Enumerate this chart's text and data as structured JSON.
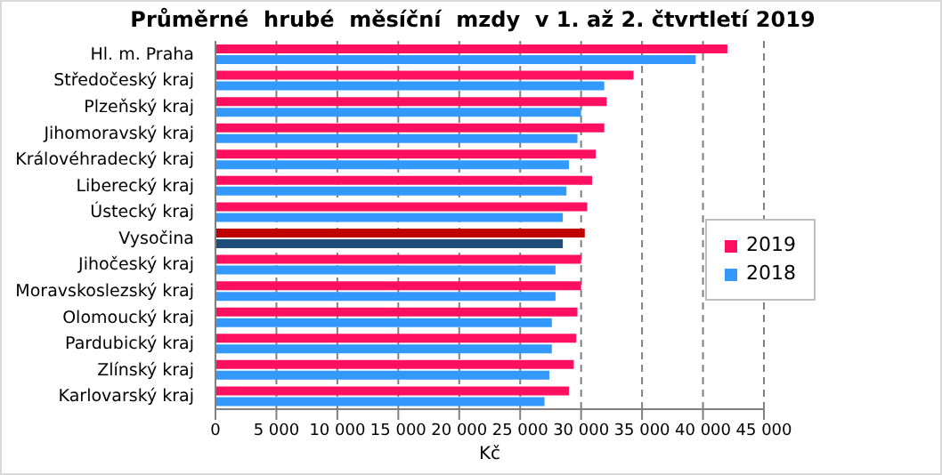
{
  "chart_data": {
    "type": "bar",
    "orientation": "horizontal",
    "title": "Průměrné  hrubé  měsíční  mzdy  v 1. až 2. čtvrtletí 2019",
    "xlabel": "Kč",
    "categories": [
      "Hl. m. Praha",
      "Středočeský kraj",
      "Plzeňský kraj",
      "Jihomoravský kraj",
      "Královéhradecký kraj",
      "Liberecký kraj",
      "Ústecký kraj",
      "Vysočina",
      "Jihočeský kraj",
      "Moravskoslezský kraj",
      "Olomoucký kraj",
      "Pardubický kraj",
      "Zlínský kraj",
      "Karlovarský kraj"
    ],
    "series": [
      {
        "name": "2019",
        "color": "#ff0f5f",
        "colors": [
          "#ff0f5f",
          "#ff0f5f",
          "#ff0f5f",
          "#ff0f5f",
          "#ff0f5f",
          "#ff0f5f",
          "#ff0f5f",
          "#c00000",
          "#ff0f5f",
          "#ff0f5f",
          "#ff0f5f",
          "#ff0f5f",
          "#ff0f5f",
          "#ff0f5f"
        ],
        "values": [
          42000.0,
          34300.0,
          32100.0,
          31900.0,
          31200.0,
          30900.0,
          30500.0,
          30300.0,
          30000.0,
          30000.0,
          29700.0,
          29600.0,
          29400.0,
          29000.0
        ]
      },
      {
        "name": "2018",
        "color": "#3399ff",
        "colors": [
          "#3399ff",
          "#3399ff",
          "#3399ff",
          "#3399ff",
          "#3399ff",
          "#3399ff",
          "#3399ff",
          "#1f4e79",
          "#3399ff",
          "#3399ff",
          "#3399ff",
          "#3399ff",
          "#3399ff",
          "#3399ff"
        ],
        "values": [
          39400.0,
          31900.0,
          30000.0,
          29700.0,
          29000.0,
          28800.0,
          28500.0,
          28500.0,
          27900.0,
          27900.0,
          27600.0,
          27600.0,
          27400.0,
          27000.0
        ]
      }
    ],
    "xlim": [
      0,
      45000
    ],
    "xticks": [
      0,
      {
        "value": 5000,
        "label": "5 000"
      },
      {
        "value": 10000,
        "label": "10 000"
      },
      {
        "value": 15000,
        "label": "15 000"
      },
      {
        "value": 20000,
        "label": "20 000"
      },
      {
        "value": 25000,
        "label": "25 000"
      },
      {
        "value": 30000,
        "label": "30 000"
      },
      {
        "value": 35000,
        "label": "35 000"
      },
      {
        "value": 40000,
        "label": "40 000"
      },
      {
        "value": 45000,
        "label": "45 000"
      }
    ],
    "grid": "x",
    "legend": "right"
  }
}
